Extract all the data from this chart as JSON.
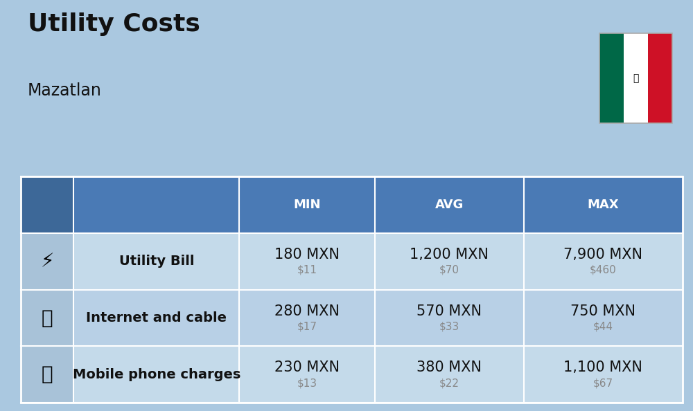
{
  "title": "Utility Costs",
  "subtitle": "Mazatlan",
  "background_color": "#aac8e0",
  "header_bg_color": "#4a7ab5",
  "header_text_color": "#ffffff",
  "row_bg_colors": [
    "#c4daea",
    "#b8d0e6",
    "#c4daea"
  ],
  "icon_col_bg": "#a8c2d8",
  "col_headers": [
    "MIN",
    "AVG",
    "MAX"
  ],
  "rows": [
    {
      "label": "Utility Bill",
      "min_mxn": "180 MXN",
      "min_usd": "$11",
      "avg_mxn": "1,200 MXN",
      "avg_usd": "$70",
      "max_mxn": "7,900 MXN",
      "max_usd": "$460"
    },
    {
      "label": "Internet and cable",
      "min_mxn": "280 MXN",
      "min_usd": "$17",
      "avg_mxn": "570 MXN",
      "avg_usd": "$33",
      "max_mxn": "750 MXN",
      "max_usd": "$44"
    },
    {
      "label": "Mobile phone charges",
      "min_mxn": "230 MXN",
      "min_usd": "$13",
      "avg_mxn": "380 MXN",
      "avg_usd": "$22",
      "max_mxn": "1,100 MXN",
      "max_usd": "$67"
    }
  ],
  "title_fontsize": 26,
  "subtitle_fontsize": 17,
  "header_fontsize": 13,
  "cell_mxn_fontsize": 15,
  "cell_usd_fontsize": 11,
  "label_fontsize": 14,
  "text_color": "#111111",
  "usd_color": "#888888",
  "flag_colors": [
    "#006847",
    "#ffffff",
    "#ce1126"
  ],
  "col_props": [
    0.08,
    0.25,
    0.205,
    0.225,
    0.24
  ]
}
